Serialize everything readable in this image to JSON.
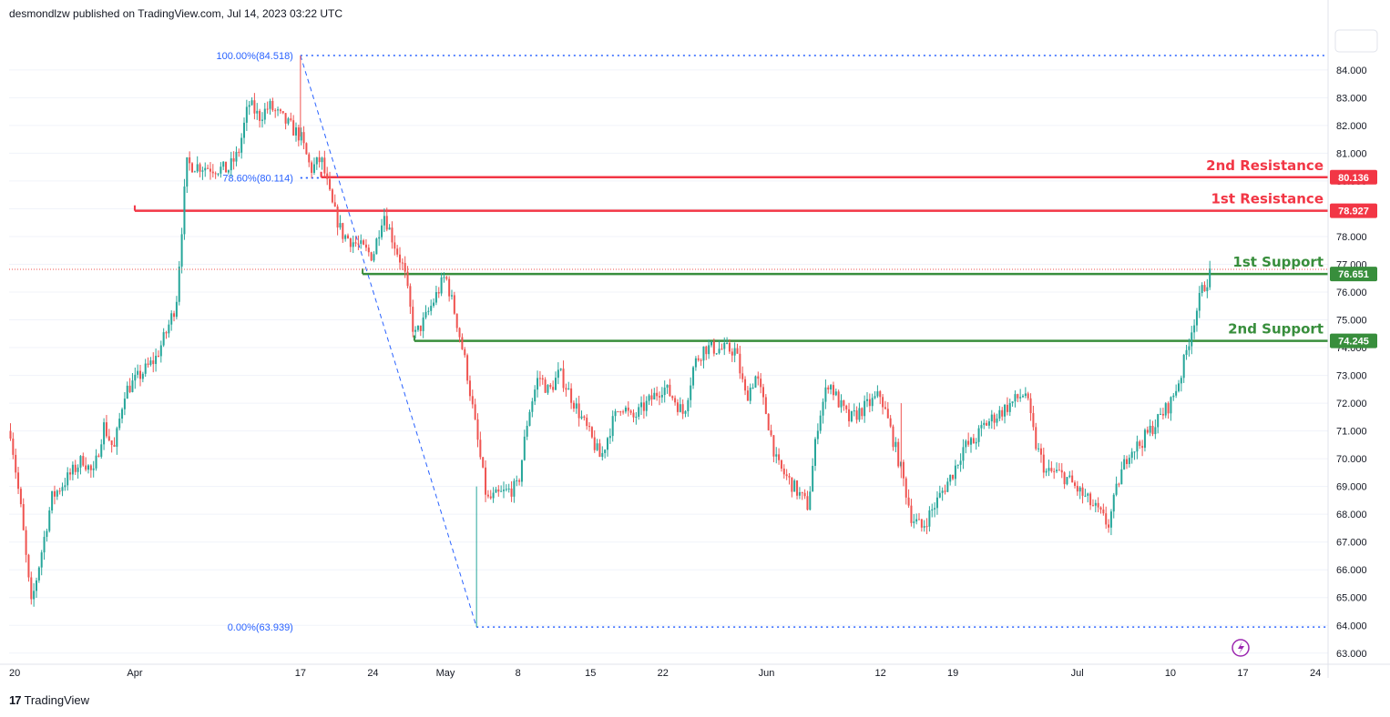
{
  "header": {
    "text": "desmondlzw published on TradingView.com, Jul 14, 2023 03:22 UTC"
  },
  "footer": {
    "logo": "17",
    "brand": "TradingView"
  },
  "colors": {
    "up": "#26a69a",
    "down": "#ef5350",
    "resistance": "#f23645",
    "support": "#388e3c",
    "fib": "#2962ff",
    "grid": "#f0f3fa"
  },
  "chart_data": {
    "type": "candlestick",
    "title": "",
    "ylim": [
      62.6,
      85.6
    ],
    "y_ticks": [
      "63.000",
      "64.000",
      "65.000",
      "66.000",
      "67.000",
      "68.000",
      "69.000",
      "70.000",
      "71.000",
      "72.000",
      "73.000",
      "74.000",
      "75.000",
      "76.000",
      "77.000",
      "78.000",
      "79.000",
      "80.000",
      "81.000",
      "82.000",
      "83.000",
      "84.000"
    ],
    "x_ticks": [
      "20",
      "Apr",
      "17",
      "24",
      "May",
      "8",
      "15",
      "22",
      "Jun",
      "12",
      "19",
      "Jul",
      "10",
      "17",
      "24"
    ],
    "levels": [
      {
        "label": "2nd Resistance",
        "price": "80.136",
        "value": 80.136,
        "kind": "resistance"
      },
      {
        "label": "1st Resistance",
        "price": "78.927",
        "value": 78.927,
        "kind": "resistance"
      },
      {
        "label": "1st Support",
        "price": "76.651",
        "value": 76.651,
        "kind": "support"
      },
      {
        "label": "2nd Support",
        "price": "74.245",
        "value": 74.245,
        "kind": "support"
      }
    ],
    "fib_levels": [
      {
        "label": "100.00%(84.518)",
        "value": 84.518
      },
      {
        "label": "78.60%(80.114)",
        "value": 80.114
      },
      {
        "label": "0.00%(63.939)",
        "value": 63.939
      }
    ],
    "current_price": 76.82,
    "anchors": [
      [
        "Mar 20",
        71.0
      ],
      [
        "Mar 21",
        68.2
      ],
      [
        "Mar 22",
        64.7
      ],
      [
        "Mar 24",
        68.6
      ],
      [
        "Mar 27",
        70.0
      ],
      [
        "Mar 28",
        69.4
      ],
      [
        "Mar 29",
        71.2
      ],
      [
        "Mar 30",
        70.3
      ],
      [
        "Mar 31",
        72.4
      ],
      [
        "Apr 3",
        73.6
      ],
      [
        "Apr 4",
        74.5
      ],
      [
        "Apr 5",
        75.6
      ],
      [
        "Apr 6",
        80.6
      ],
      [
        "Apr 10",
        80.4
      ],
      [
        "Apr 11",
        81.0
      ],
      [
        "Apr 12",
        82.8
      ],
      [
        "Apr 13",
        82.3
      ],
      [
        "Apr 14",
        82.7
      ],
      [
        "Apr 17",
        81.6
      ],
      [
        "Apr 18",
        80.4
      ],
      [
        "Apr 19",
        80.8
      ],
      [
        "Apr 20",
        79.2
      ],
      [
        "Apr 21",
        78.1
      ],
      [
        "Apr 24",
        77.3
      ],
      [
        "Apr 25",
        78.9
      ],
      [
        "Apr 26",
        77.8
      ],
      [
        "Apr 27",
        76.8
      ],
      [
        "Apr 28",
        74.4
      ],
      [
        "Apr 29",
        75.0
      ],
      [
        "May 1",
        76.6
      ],
      [
        "May 2",
        75.1
      ],
      [
        "May 3",
        73.3
      ],
      [
        "May 4",
        70.9
      ],
      [
        "May 5",
        68.5
      ],
      [
        "May 8",
        69.0
      ],
      [
        "May 9",
        71.6
      ],
      [
        "May 10",
        73.0
      ],
      [
        "May 11",
        72.4
      ],
      [
        "May 12",
        73.1
      ],
      [
        "May 15",
        70.8
      ],
      [
        "May 16",
        70.0
      ],
      [
        "May 17",
        71.2
      ],
      [
        "May 18",
        72.0
      ],
      [
        "May 19",
        71.4
      ],
      [
        "May 22",
        72.6
      ],
      [
        "May 23",
        72.2
      ],
      [
        "May 24",
        71.6
      ],
      [
        "May 25",
        73.4
      ],
      [
        "May 26",
        74.0
      ],
      [
        "May 29",
        73.9
      ],
      [
        "May 30",
        72.2
      ],
      [
        "May 31",
        73.0
      ],
      [
        "Jun 1",
        71.6
      ],
      [
        "Jun 2",
        69.8
      ],
      [
        "Jun 5",
        68.3
      ],
      [
        "Jun 6",
        71.4
      ],
      [
        "Jun 7",
        72.8
      ],
      [
        "Jun 8",
        72.0
      ],
      [
        "Jun 9",
        71.4
      ],
      [
        "Jun 12",
        72.3
      ],
      [
        "Jun 13",
        71.0
      ],
      [
        "Jun 14",
        69.6
      ],
      [
        "Jun 15",
        67.9
      ],
      [
        "Jun 16",
        67.5
      ],
      [
        "Jun 19",
        69.5
      ],
      [
        "Jun 20",
        70.4
      ],
      [
        "Jun 21",
        70.6
      ],
      [
        "Jun 22",
        71.2
      ],
      [
        "Jun 23",
        71.5
      ],
      [
        "Jun 26",
        72.4
      ],
      [
        "Jun 27",
        70.5
      ],
      [
        "Jun 28",
        69.5
      ],
      [
        "Jun 29",
        69.5
      ],
      [
        "Jun 30",
        69.3
      ],
      [
        "Jul 3",
        68.1
      ],
      [
        "Jul 4",
        67.6
      ],
      [
        "Jul 5",
        69.2
      ],
      [
        "Jul 6",
        70.3
      ],
      [
        "Jul 7",
        70.5
      ],
      [
        "Jul 10",
        72.0
      ],
      [
        "Jul 11",
        73.0
      ],
      [
        "Jul 12",
        74.6
      ],
      [
        "Jul 13",
        76.0
      ],
      [
        "Jul 14",
        76.8
      ]
    ]
  }
}
